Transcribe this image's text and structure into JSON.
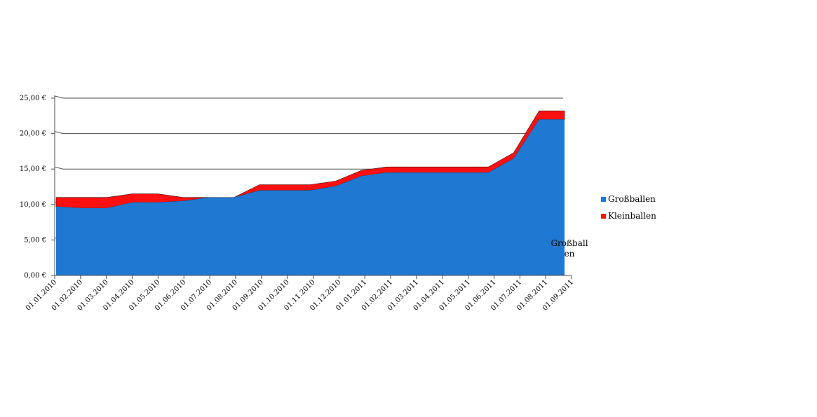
{
  "chart_data": {
    "type": "area",
    "stacked": true,
    "title": "",
    "xlabel": "",
    "ylabel": "",
    "ylim": [
      0,
      25
    ],
    "y_ticks": [
      "0,00 €",
      "5,00 €",
      "10,00 €",
      "15,00 €",
      "20,00 €",
      "25,00 €"
    ],
    "x": [
      "01.01.2010",
      "01.02.2010",
      "01.03.2010",
      "01.04.2010",
      "01.05.2010",
      "01.06.2010",
      "01.07.2010",
      "01.08.2010",
      "01.09.2010",
      "01.10.2010",
      "01.11.2010",
      "01.12.2010",
      "01.01.2011",
      "01.02.2011",
      "01.03.2011",
      "01.04.2011",
      "01.05.2011",
      "01.06.2011",
      "01.07.2011",
      "01.08.2011",
      "01.09.2011"
    ],
    "series": [
      {
        "name": "Großballen",
        "color": "#1f78d1",
        "values": [
          9.7,
          9.5,
          9.5,
          10.3,
          10.3,
          10.5,
          11.0,
          11.0,
          12.0,
          12.0,
          12.0,
          12.6,
          14.0,
          14.5,
          14.5,
          14.5,
          14.5,
          14.5,
          16.5,
          22.0,
          22.0
        ]
      },
      {
        "name": "Kleinballen",
        "color": "#ff1010",
        "values": [
          1.3,
          1.5,
          1.5,
          1.2,
          1.2,
          0.5,
          0.0,
          0.0,
          0.8,
          0.8,
          0.8,
          0.7,
          0.8,
          0.8,
          0.8,
          0.8,
          0.8,
          0.8,
          0.8,
          1.2,
          1.2
        ]
      }
    ],
    "legend": {
      "placement": "right"
    },
    "grid": true,
    "annotation": "Großballen"
  }
}
